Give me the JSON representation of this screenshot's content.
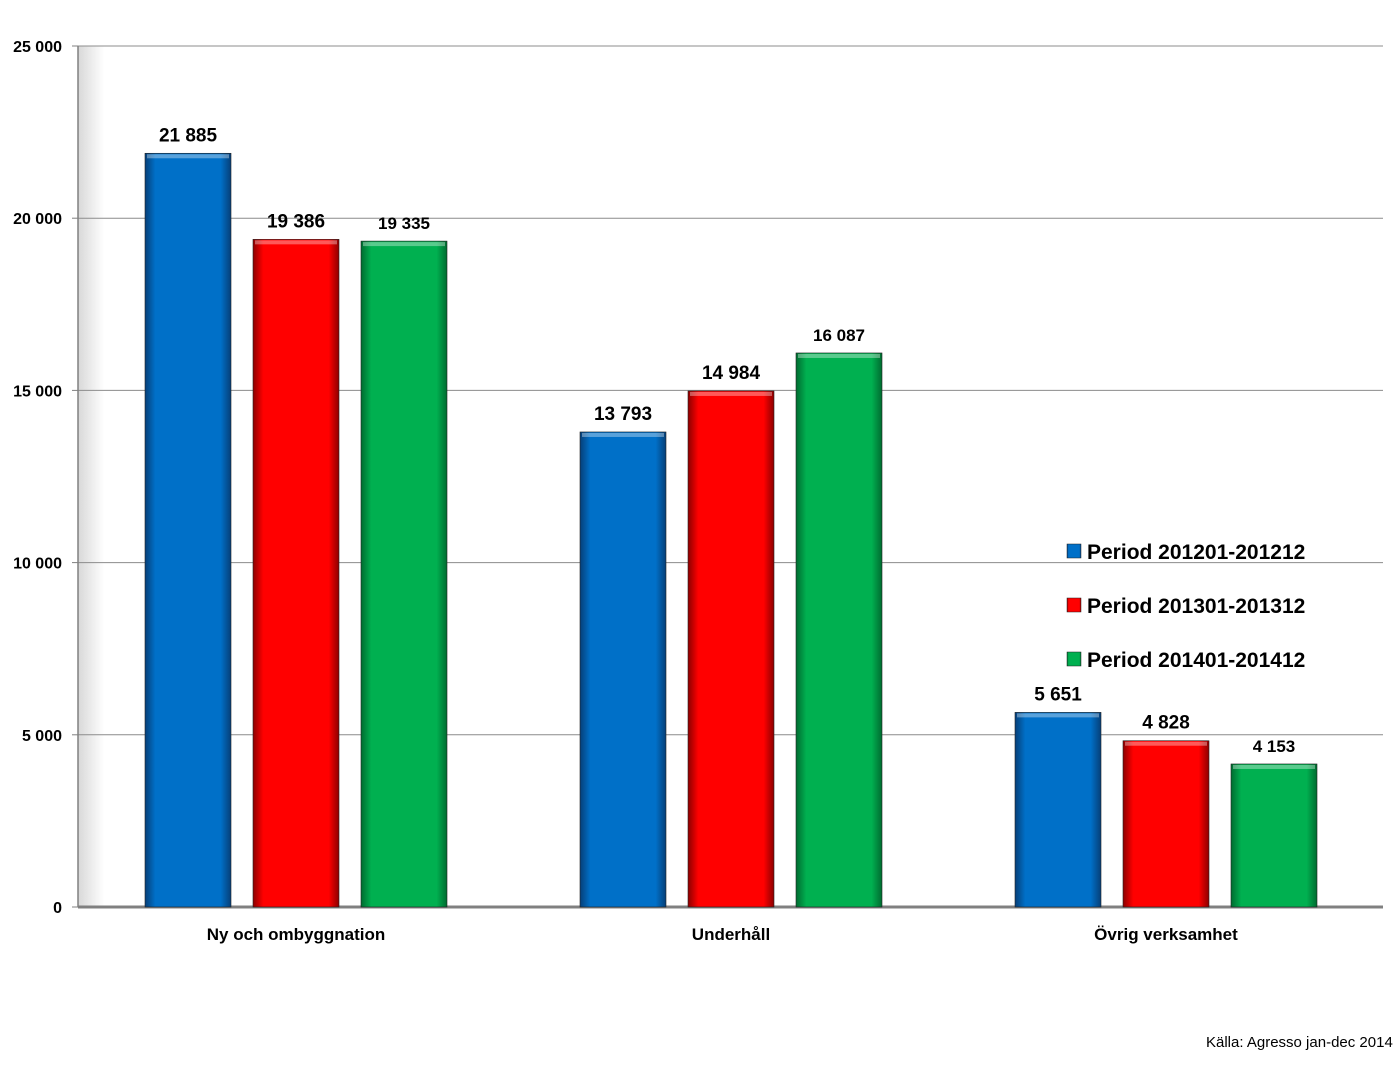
{
  "chart_data": {
    "type": "bar",
    "title": "",
    "xlabel": "",
    "ylabel": "",
    "categories": [
      "Ny och ombyggnation",
      "Underhåll",
      "Övrig verksamhet"
    ],
    "series": [
      {
        "name": "Period 201201-201212",
        "color": "#0070C8",
        "values": [
          21885,
          13793,
          5651
        ],
        "labels": [
          "21 885",
          "13 793",
          "5 651"
        ]
      },
      {
        "name": "Period 201301-201312",
        "color": "#FF0000",
        "values": [
          19386,
          14984,
          4828
        ],
        "labels": [
          "19 386",
          "14 984",
          "4 828"
        ]
      },
      {
        "name": "Period 201401-201412",
        "color": "#00B050",
        "values": [
          19335,
          16087,
          4153
        ],
        "labels": [
          "19 335",
          "16 087",
          "4 153"
        ]
      }
    ],
    "ylim": [
      0,
      25000
    ],
    "yticks": [
      0,
      5000,
      10000,
      15000,
      20000,
      25000
    ],
    "ytick_labels": [
      "0",
      "5 000",
      "10 000",
      "15 000",
      "20 000",
      "25 000"
    ],
    "grid": true,
    "legend_position": "right"
  },
  "source_note": "Källa: Agresso jan-dec 2014"
}
